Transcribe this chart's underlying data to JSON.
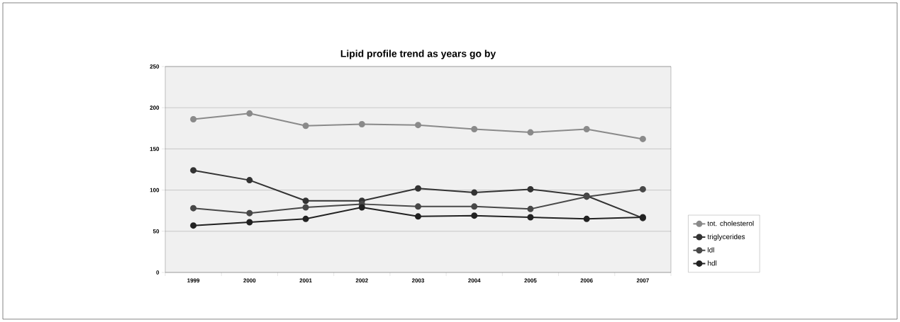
{
  "chart_data": {
    "type": "line",
    "title": "Lipid profile trend as years go by",
    "categories": [
      "1999",
      "2000",
      "2001",
      "2002",
      "2003",
      "2004",
      "2005",
      "2006",
      "2007"
    ],
    "series": [
      {
        "name": "tot. cholesterol",
        "color": "#8a8a8a",
        "values": [
          186,
          193,
          178,
          180,
          179,
          174,
          170,
          174,
          162
        ]
      },
      {
        "name": "triglycerides",
        "color": "#333333",
        "values": [
          124,
          112,
          87,
          87,
          102,
          97,
          101,
          93,
          66
        ]
      },
      {
        "name": "ldl",
        "color": "#484848",
        "values": [
          78,
          72,
          79,
          83,
          80,
          80,
          77,
          92,
          101
        ]
      },
      {
        "name": "hdl",
        "color": "#222222",
        "values": [
          57,
          61,
          65,
          79,
          68,
          69,
          67,
          65,
          67
        ]
      }
    ],
    "ylim": [
      0,
      250
    ],
    "yticks": [
      0,
      50,
      100,
      150,
      200,
      250
    ],
    "grid": "y",
    "legend": "right",
    "marker": "circle",
    "line_style": "solid"
  }
}
